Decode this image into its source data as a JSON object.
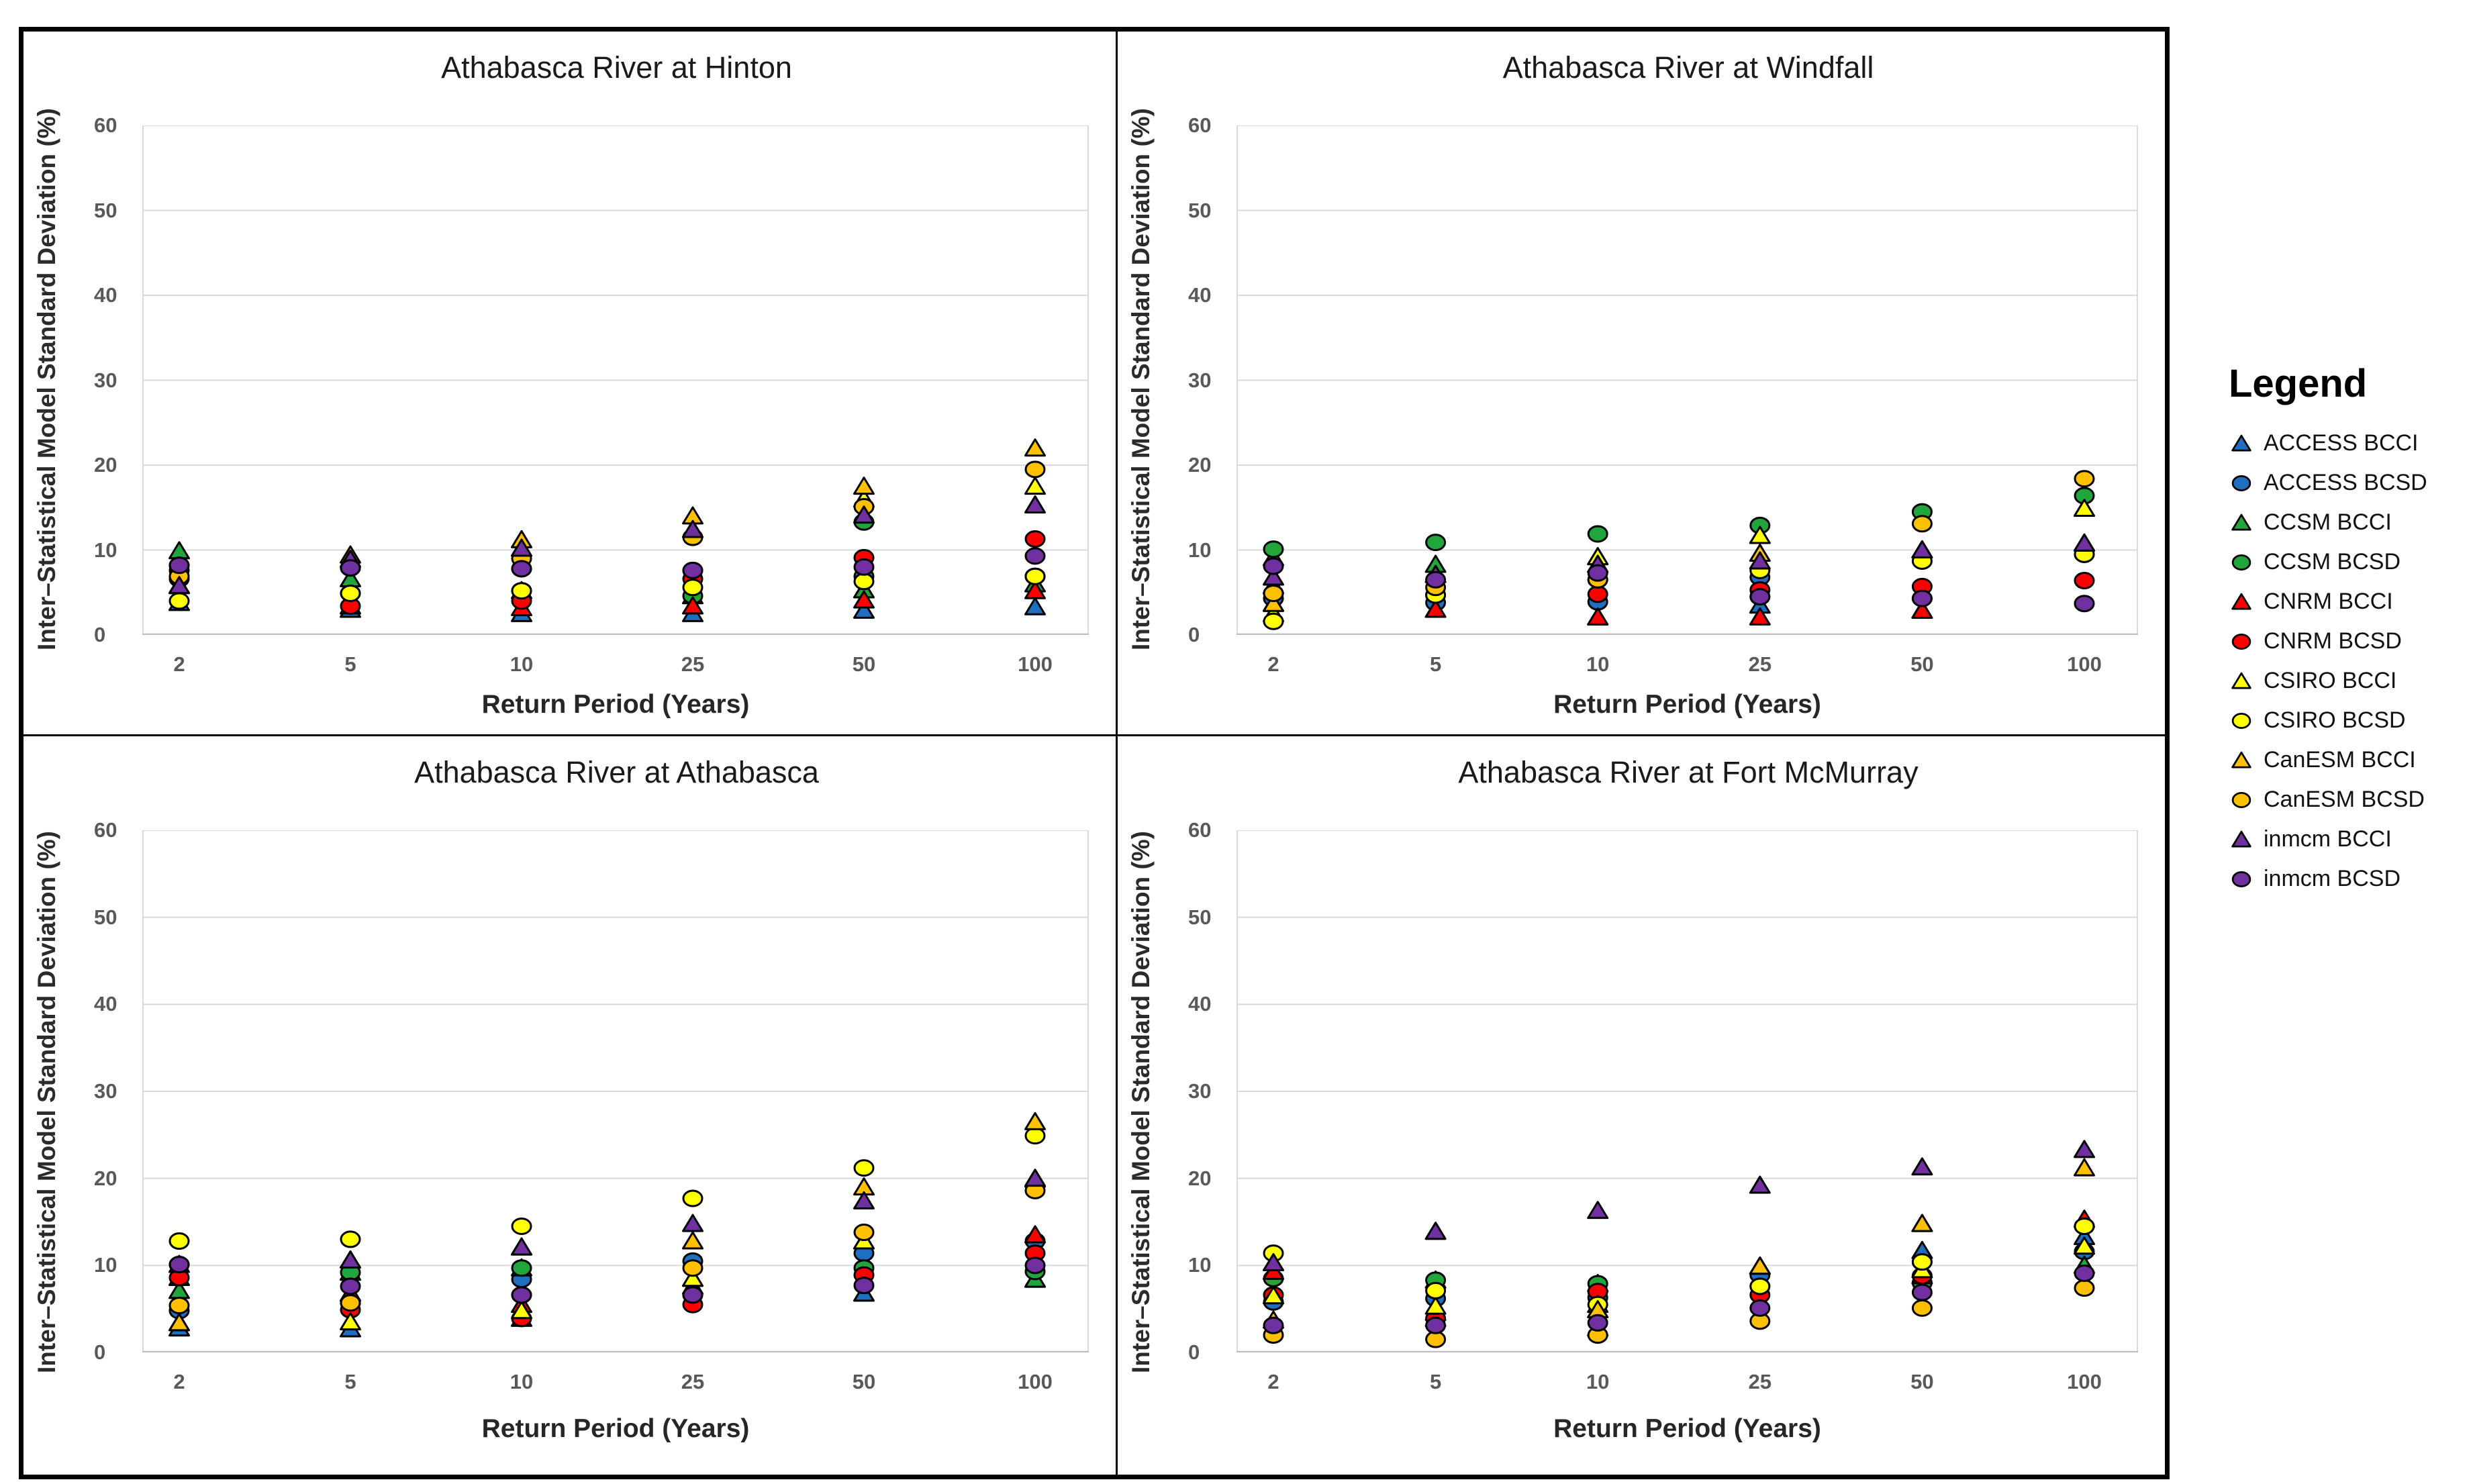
{
  "legend": {
    "title": "Legend",
    "items": [
      {
        "label": "ACCESS BCCI",
        "marker": "triangle",
        "color": "#1F6FC0"
      },
      {
        "label": "ACCESS BCSD",
        "marker": "circle",
        "color": "#1F6FC0"
      },
      {
        "label": "CCSM BCCI",
        "marker": "triangle",
        "color": "#21A63C"
      },
      {
        "label": "CCSM BCSD",
        "marker": "circle",
        "color": "#21A63C"
      },
      {
        "label": "CNRM BCCI",
        "marker": "triangle",
        "color": "#FF0000"
      },
      {
        "label": "CNRM BCSD",
        "marker": "circle",
        "color": "#FF0000"
      },
      {
        "label": "CSIRO BCCI",
        "marker": "triangle",
        "color": "#FFFF00"
      },
      {
        "label": "CSIRO BCSD",
        "marker": "circle",
        "color": "#FFFF00"
      },
      {
        "label": "CanESM BCCI",
        "marker": "triangle",
        "color": "#FFC000"
      },
      {
        "label": "CanESM BCSD",
        "marker": "circle",
        "color": "#FFC000"
      },
      {
        "label": "inmcm BCCI",
        "marker": "triangle",
        "color": "#7030A0"
      },
      {
        "label": "inmcm BCSD",
        "marker": "circle",
        "color": "#7030A0"
      }
    ]
  },
  "axis": {
    "x_label": "Return Period (Years)",
    "y_label": "Inter–Statistical Model Standard Deviation (%)",
    "categories": [
      2,
      5,
      10,
      25,
      50,
      100
    ],
    "ylim": [
      0,
      60
    ],
    "ytick_step": 10
  },
  "style": {
    "gridline_color": "#D9D9D9",
    "axis_line_color": "#BFBFBF",
    "marker_outline": "#000000"
  },
  "chart_data": [
    {
      "type": "scatter",
      "title": "Athabasca River at Hinton",
      "xlabel": "Return Period (Years)",
      "ylabel": "Inter–Statistical Model Standard Deviation (%)",
      "categories": [
        2,
        5,
        10,
        25,
        50,
        100
      ],
      "ylim": [
        0,
        60
      ],
      "grid": true,
      "series": [
        {
          "name": "ACCESS BCCI",
          "values": [
            3.8,
            3.0,
            2.5,
            2.5,
            2.9,
            3.3
          ]
        },
        {
          "name": "ACCESS BCSD",
          "values": [
            6.6,
            4.9,
            5.2,
            7.6,
            6.9,
            6.9
          ]
        },
        {
          "name": "CCSM BCCI",
          "values": [
            9.9,
            6.6,
            5.2,
            4.6,
            5.3,
            6.0
          ]
        },
        {
          "name": "CCSM BCSD",
          "values": [
            8.2,
            7.9,
            7.8,
            4.6,
            13.3,
            6.9
          ]
        },
        {
          "name": "CNRM BCCI",
          "values": [
            5.8,
            3.4,
            3.2,
            3.4,
            4.1,
            5.2
          ]
        },
        {
          "name": "CNRM BCSD",
          "values": [
            7.6,
            3.4,
            4.0,
            6.6,
            9.1,
            11.3
          ]
        },
        {
          "name": "CSIRO BCCI",
          "values": [
            5.8,
            8.9,
            10.2,
            12.4,
            16.0,
            17.5
          ]
        },
        {
          "name": "CSIRO BCSD",
          "values": [
            4.0,
            4.9,
            5.2,
            5.6,
            6.3,
            6.9
          ]
        },
        {
          "name": "CanESM BCCI",
          "values": [
            5.8,
            9.4,
            11.2,
            14.0,
            17.5,
            22.0
          ]
        },
        {
          "name": "CanESM BCSD",
          "values": [
            6.9,
            7.9,
            9.0,
            11.5,
            15.1,
            19.5
          ]
        },
        {
          "name": "inmcm BCCI",
          "values": [
            5.8,
            8.9,
            10.2,
            12.4,
            14.1,
            15.3
          ]
        },
        {
          "name": "inmcm BCSD",
          "values": [
            8.2,
            7.9,
            7.8,
            7.6,
            8.0,
            9.3
          ]
        }
      ]
    },
    {
      "type": "scatter",
      "title": "Athabasca River at Windfall",
      "xlabel": "Return Period (Years)",
      "ylabel": "Inter–Statistical Model Standard Deviation (%)",
      "categories": [
        2,
        5,
        10,
        25,
        50,
        100
      ],
      "ylim": [
        0,
        60
      ],
      "grid": true,
      "series": [
        {
          "name": "ACCESS BCCI",
          "values": [
            3.7,
            3.0,
            2.1,
            3.5,
            2.9,
            10.8
          ]
        },
        {
          "name": "ACCESS BCSD",
          "values": [
            4.3,
            3.8,
            3.9,
            6.8,
            4.3,
            9.5
          ]
        },
        {
          "name": "CCSM BCCI",
          "values": [
            9.1,
            8.3,
            9.2,
            11.7,
            10.0,
            14.9
          ]
        },
        {
          "name": "CCSM BCSD",
          "values": [
            10.1,
            10.9,
            11.9,
            12.9,
            14.5,
            16.4
          ]
        },
        {
          "name": "CNRM BCCI",
          "values": [
            5.8,
            3.0,
            2.1,
            2.1,
            2.9,
            10.8
          ]
        },
        {
          "name": "CNRM BCSD",
          "values": [
            4.9,
            4.7,
            4.8,
            5.3,
            5.7,
            6.4
          ]
        },
        {
          "name": "CSIRO BCCI",
          "values": [
            2.5,
            7.1,
            9.2,
            11.7,
            10.0,
            14.9
          ]
        },
        {
          "name": "CSIRO BCSD",
          "values": [
            1.6,
            4.7,
            6.5,
            7.6,
            8.7,
            9.5
          ]
        },
        {
          "name": "CanESM BCCI",
          "values": [
            3.7,
            7.1,
            8.3,
            9.6,
            10.0,
            10.8
          ]
        },
        {
          "name": "CanESM BCSD",
          "values": [
            4.9,
            5.6,
            6.5,
            4.5,
            13.1,
            18.4
          ]
        },
        {
          "name": "inmcm BCCI",
          "values": [
            6.8,
            7.1,
            8.3,
            8.7,
            10.0,
            10.8
          ]
        },
        {
          "name": "inmcm BCSD",
          "values": [
            8.1,
            6.5,
            7.3,
            4.5,
            4.3,
            3.7
          ]
        }
      ]
    },
    {
      "type": "scatter",
      "title": "Athabasca River at Athabasca",
      "xlabel": "Return Period (Years)",
      "ylabel": "Inter–Statistical Model Standard Deviation (%)",
      "categories": [
        2,
        5,
        10,
        25,
        50,
        100
      ],
      "ylim": [
        0,
        60
      ],
      "grid": true,
      "series": [
        {
          "name": "ACCESS BCCI",
          "values": [
            2.8,
            2.7,
            3.9,
            7.6,
            6.8,
            8.4
          ]
        },
        {
          "name": "ACCESS BCSD",
          "values": [
            4.8,
            5.7,
            8.4,
            10.5,
            11.4,
            12.8
          ]
        },
        {
          "name": "CCSM BCCI",
          "values": [
            7.1,
            9.2,
            9.7,
            7.6,
            12.8,
            8.4
          ]
        },
        {
          "name": "CCSM BCSD",
          "values": [
            10.1,
            9.2,
            9.7,
            6.6,
            9.7,
            9.3
          ]
        },
        {
          "name": "CNRM BCCI",
          "values": [
            8.6,
            6.8,
            5.5,
            8.5,
            12.8,
            13.5
          ]
        },
        {
          "name": "CNRM BCSD",
          "values": [
            8.6,
            4.9,
            3.9,
            5.5,
            8.9,
            11.4
          ]
        },
        {
          "name": "CSIRO BCCI",
          "values": [
            3.4,
            3.5,
            4.8,
            8.5,
            12.8,
            19.9
          ]
        },
        {
          "name": "CSIRO BCSD",
          "values": [
            12.8,
            13.0,
            14.5,
            17.7,
            21.2,
            24.9
          ]
        },
        {
          "name": "CanESM BCCI",
          "values": [
            3.4,
            10.6,
            12.1,
            12.8,
            19.0,
            26.5
          ]
        },
        {
          "name": "CanESM BCSD",
          "values": [
            5.4,
            5.7,
            6.6,
            9.7,
            13.8,
            18.6
          ]
        },
        {
          "name": "inmcm BCCI",
          "values": [
            10.1,
            10.6,
            12.1,
            14.8,
            17.4,
            20.0
          ]
        },
        {
          "name": "inmcm BCSD",
          "values": [
            10.1,
            7.6,
            6.6,
            6.6,
            7.7,
            10.0
          ]
        }
      ]
    },
    {
      "type": "scatter",
      "title": "Athabasca River at Fort McMurray",
      "xlabel": "Return Period (Years)",
      "ylabel": "Inter–Statistical Model Standard Deviation (%)",
      "categories": [
        2,
        5,
        10,
        25,
        50,
        100
      ],
      "ylim": [
        0,
        60
      ],
      "grid": true,
      "series": [
        {
          "name": "ACCESS BCCI",
          "values": [
            6.5,
            4.6,
            4.9,
            9.9,
            11.7,
            13.3
          ]
        },
        {
          "name": "ACCESS BCSD",
          "values": [
            5.8,
            6.2,
            6.3,
            8.9,
            10.4,
            11.6
          ]
        },
        {
          "name": "CCSM BCCI",
          "values": [
            9.3,
            8.3,
            7.9,
            9.9,
            14.8,
            10.0
          ]
        },
        {
          "name": "CCSM BCSD",
          "values": [
            8.5,
            8.3,
            7.9,
            7.6,
            8.0,
            14.5
          ]
        },
        {
          "name": "CNRM BCCI",
          "values": [
            9.3,
            3.9,
            2.8,
            9.9,
            8.8,
            15.3
          ]
        },
        {
          "name": "CNRM BCSD",
          "values": [
            6.6,
            3.9,
            7.0,
            6.6,
            8.8,
            14.5
          ]
        },
        {
          "name": "CSIRO BCCI",
          "values": [
            6.5,
            5.3,
            5.5,
            9.9,
            9.5,
            12.2
          ]
        },
        {
          "name": "CSIRO BCSD",
          "values": [
            11.4,
            7.1,
            5.5,
            7.6,
            10.4,
            14.5
          ]
        },
        {
          "name": "CanESM BCCI",
          "values": [
            3.7,
            13.9,
            4.9,
            9.9,
            14.8,
            21.2
          ]
        },
        {
          "name": "CanESM BCSD",
          "values": [
            2.0,
            1.5,
            2.0,
            3.6,
            5.1,
            7.4
          ]
        },
        {
          "name": "inmcm BCCI",
          "values": [
            10.3,
            13.9,
            16.3,
            19.2,
            21.3,
            23.3
          ]
        },
        {
          "name": "inmcm BCSD",
          "values": [
            3.1,
            3.1,
            3.4,
            5.1,
            6.9,
            9.1
          ]
        }
      ]
    }
  ]
}
